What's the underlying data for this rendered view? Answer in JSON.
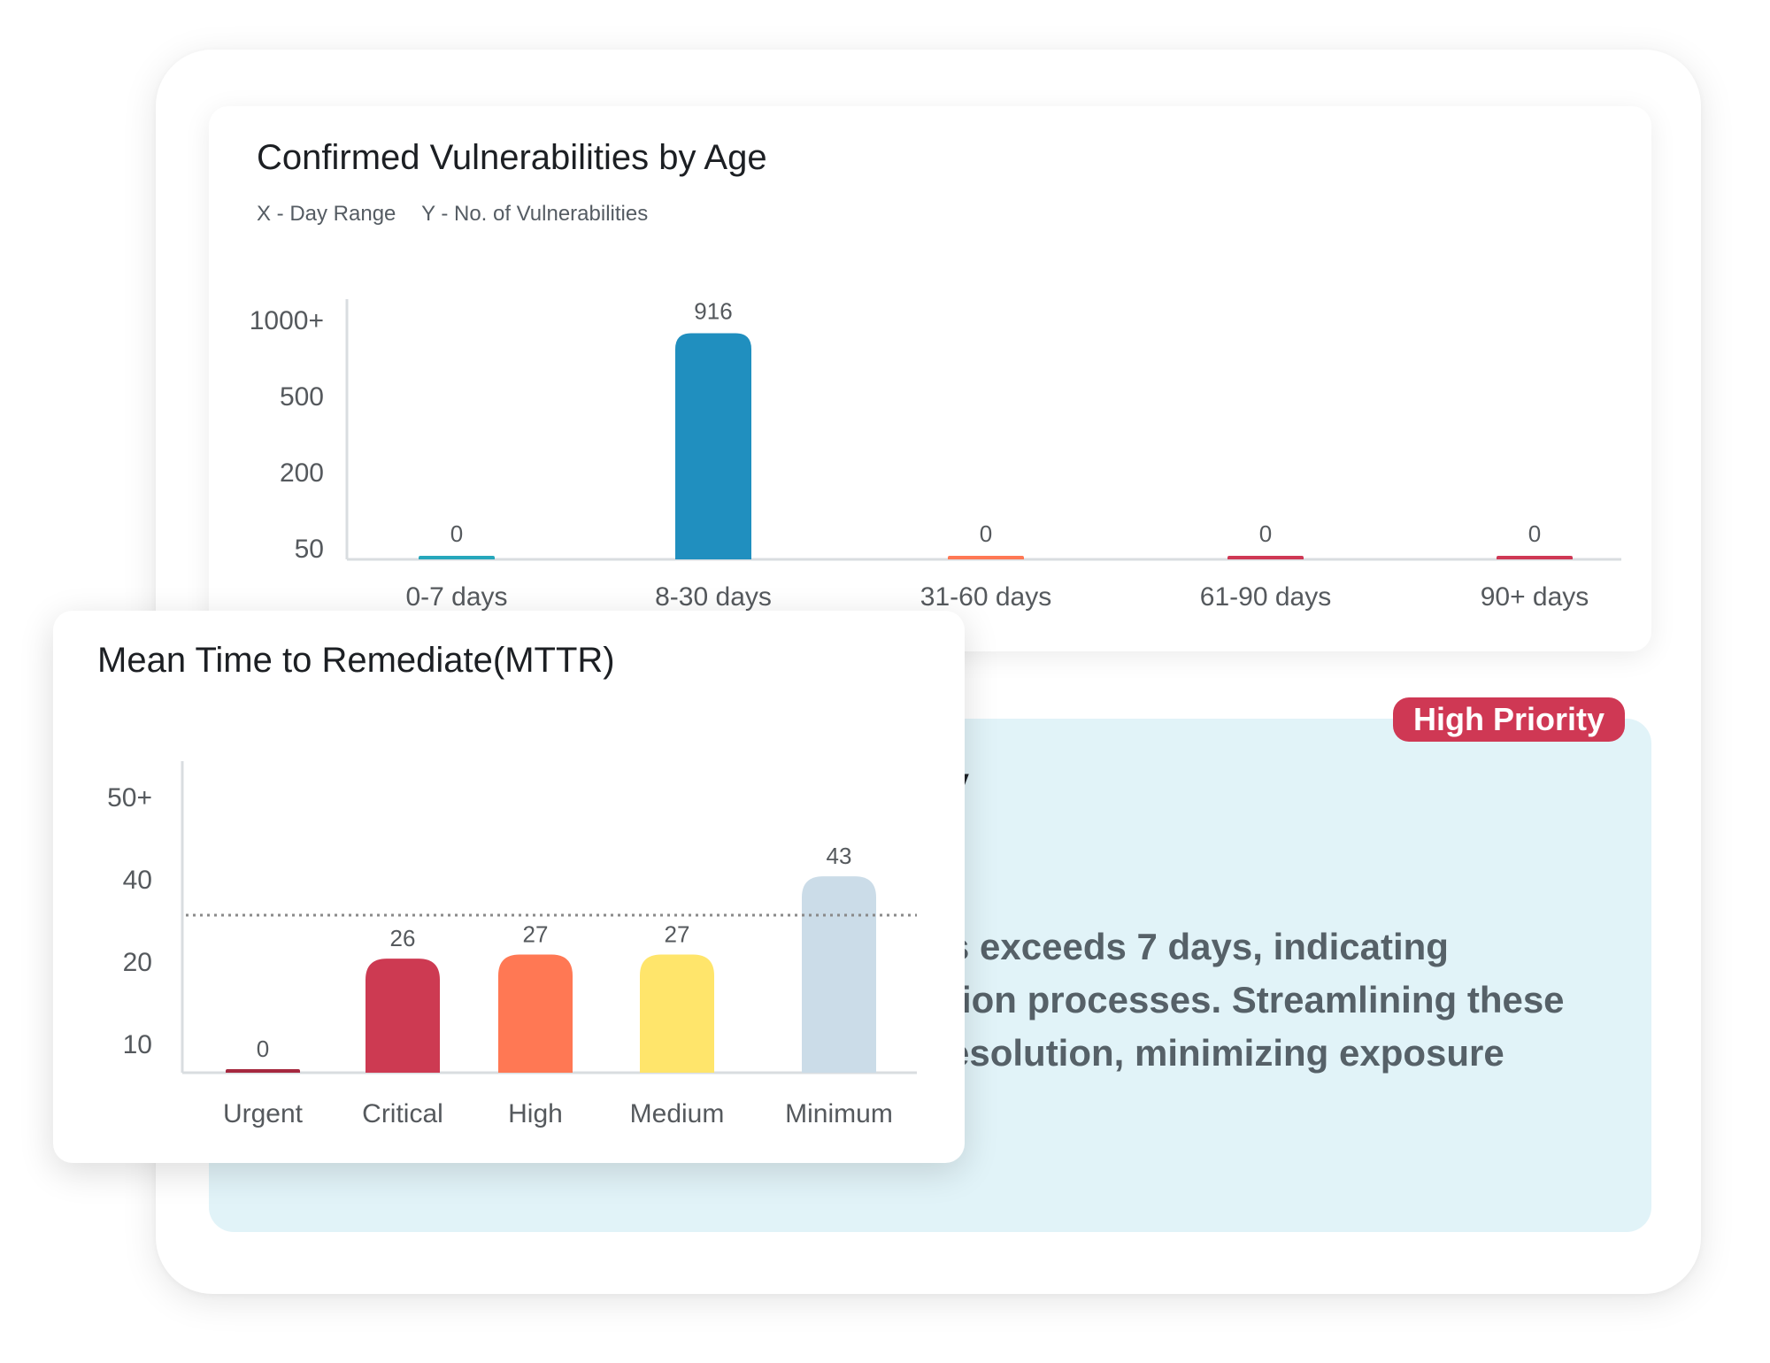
{
  "age_chart": {
    "title": "Confirmed Vulnerabilities by Age",
    "x_caption": "X - Day Range",
    "y_caption": "Y - No. of Vulnerabilities"
  },
  "priority_panel": {
    "badge": "High Priority",
    "heading_fragment": "ty",
    "body_fragment": "s exceeds 7 days, indicating\ntion processes. Streamlining these\nesolution, minimizing exposure"
  },
  "mttr_chart": {
    "title": "Mean Time to Remediate(MTTR)"
  },
  "chart_data": [
    {
      "type": "bar",
      "title": "Confirmed Vulnerabilities by Age",
      "xlabel": "Day Range",
      "ylabel": "No. of Vulnerabilities",
      "scale": "non-linear",
      "yticks": [
        "50",
        "200",
        "500",
        "1000+"
      ],
      "categories": [
        "0-7 days",
        "8-30 days",
        "31-60 days",
        "61-90 days",
        "90+ days"
      ],
      "values": [
        0,
        916,
        0,
        0,
        0
      ],
      "data_labels": [
        "0",
        "916",
        "0",
        "0",
        "0"
      ],
      "colors": [
        "#26a7bb",
        "#208fbf",
        "#ff7854",
        "#cf3854",
        "#cf3854"
      ]
    },
    {
      "type": "bar",
      "title": "Mean Time to Remediate(MTTR)",
      "yticks": [
        "10",
        "20",
        "40",
        "50+"
      ],
      "categories": [
        "Urgent",
        "Critical",
        "High",
        "Medium",
        "Minimum"
      ],
      "values": [
        0,
        26,
        27,
        27,
        43
      ],
      "data_labels": [
        "0",
        "26",
        "27",
        "27",
        "43"
      ],
      "colors": [
        "#a5283f",
        "#cd3a52",
        "#ff7854",
        "#ffe56b",
        "#cbdce8"
      ],
      "reference_line": {
        "style": "dotted",
        "color": "#8a8a8a"
      }
    }
  ]
}
